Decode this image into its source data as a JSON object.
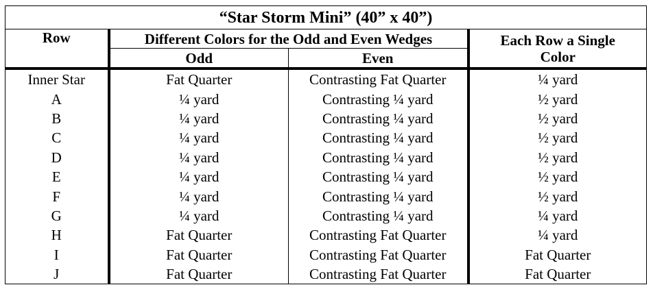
{
  "table": {
    "title": "“Star Storm Mini” (40” x 40”)",
    "header": {
      "row": "Row",
      "group": "Different Colors for the Odd and Even Wedges",
      "odd": "Odd",
      "even": "Even",
      "single": "Each Row a Single Color"
    },
    "rows": [
      [
        "Inner Star",
        "Fat Quarter",
        "Contrasting Fat Quarter",
        "¼ yard"
      ],
      [
        "A",
        "¼ yard",
        "Contrasting ¼ yard",
        "½ yard"
      ],
      [
        "B",
        "¼ yard",
        "Contrasting ¼ yard",
        "½ yard"
      ],
      [
        "C",
        "¼ yard",
        "Contrasting ¼ yard",
        "½ yard"
      ],
      [
        "D",
        "¼ yard",
        "Contrasting ¼ yard",
        "½ yard"
      ],
      [
        "E",
        "¼ yard",
        "Contrasting ¼ yard",
        "½ yard"
      ],
      [
        "F",
        "¼ yard",
        "Contrasting ¼ yard",
        "½ yard"
      ],
      [
        "G",
        "¼ yard",
        "Contrasting ¼ yard",
        "¼ yard"
      ],
      [
        "H",
        "Fat Quarter",
        "Contrasting Fat Quarter",
        "¼ yard"
      ],
      [
        "I",
        "Fat Quarter",
        "Contrasting Fat Quarter",
        "Fat Quarter"
      ],
      [
        "J",
        "Fat Quarter",
        "Contrasting Fat Quarter",
        "Fat Quarter"
      ]
    ]
  }
}
